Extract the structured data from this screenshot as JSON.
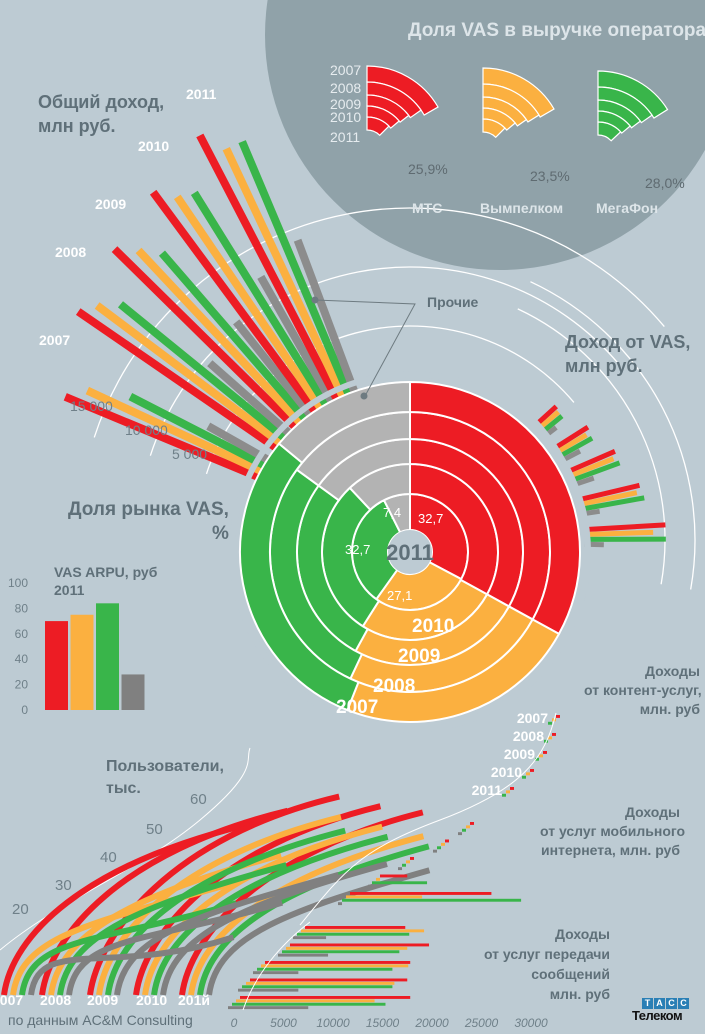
{
  "colors": {
    "mts": "#ed1c24",
    "beeline": "#fbb040",
    "megafon": "#39b54a",
    "others": "#8c8c8c",
    "others_light": "#b3b3b3",
    "background": "#bdcbd3",
    "circle": "#90a2a9"
  },
  "operators": [
    "МТС",
    "Вымпелком",
    "МегаФон",
    "Прочие"
  ],
  "years": [
    "2007",
    "2008",
    "2009",
    "2010",
    "2011"
  ],
  "source": "по  данным AC&M Consulting",
  "logo": {
    "top": [
      "Т",
      "А",
      "С",
      "С"
    ],
    "bottom": "Телеком"
  },
  "chart_data": [
    {
      "id": "vas_share_of_revenue",
      "type": "pie",
      "title": "Доля VAS в выручке оператора",
      "years": [
        "2007",
        "2008",
        "2009",
        "2010",
        "2011"
      ],
      "series": [
        {
          "name": "МТС",
          "label_2011": "25,9%",
          "value_2011": 25.9
        },
        {
          "name": "Вымпелком",
          "label_2011": "23,5%",
          "value_2011": 23.5
        },
        {
          "name": "МегаФон",
          "label_2011": "28,0%",
          "value_2011": 28.0
        }
      ]
    },
    {
      "id": "total_revenue",
      "type": "bar",
      "title": "Общий доход, млн руб.",
      "categories": [
        "2007",
        "2008",
        "2009",
        "2010",
        "2011"
      ],
      "axis_ticks": [
        "5 000",
        "10 000",
        "15 000"
      ],
      "series": [
        {
          "name": "МТС",
          "values": [
            18500,
            21000,
            22000,
            23500,
            25500
          ]
        },
        {
          "name": "Вымпелком",
          "values": [
            17000,
            20000,
            20500,
            22000,
            23500
          ]
        },
        {
          "name": "МегаФон",
          "values": [
            13500,
            18500,
            19000,
            21500,
            23500
          ]
        },
        {
          "name": "Прочие",
          "values": [
            6500,
            9500,
            10500,
            12500,
            14000
          ]
        }
      ]
    },
    {
      "id": "vas_market_share",
      "type": "pie",
      "title": "Доля рынка VAS, %",
      "center_label": "2011",
      "ring_labels": [
        "2011",
        "2010",
        "2009",
        "2008",
        "2007"
      ],
      "annotation": "Прочие",
      "rings": [
        {
          "year": "2011",
          "values": [
            32.7,
            27.1,
            32.7,
            7.4
          ],
          "labels": [
            "32,7",
            "27,1",
            "32,7",
            "7,4"
          ]
        },
        {
          "year": "2010",
          "values": [
            33,
            26,
            29,
            12
          ]
        },
        {
          "year": "2009",
          "values": [
            33,
            25,
            27,
            15
          ]
        },
        {
          "year": "2008",
          "values": [
            33,
            24,
            28,
            15
          ]
        },
        {
          "year": "2007",
          "values": [
            33,
            23,
            30,
            14
          ]
        }
      ]
    },
    {
      "id": "vas_revenue",
      "type": "bar",
      "title": "Доход от VAS, млн руб.",
      "categories": [
        "2007",
        "2008",
        "2009",
        "2010",
        "2011"
      ],
      "series": [
        {
          "name": "МТС",
          "values": [
            2200,
            3400,
            4600,
            5800,
            7700
          ]
        },
        {
          "name": "Вымпелком",
          "values": [
            2000,
            2900,
            4200,
            5400,
            6500
          ]
        },
        {
          "name": "МегаФон",
          "values": [
            2000,
            3200,
            4600,
            6000,
            7700
          ]
        },
        {
          "name": "Прочие",
          "values": [
            900,
            1600,
            1800,
            1600,
            1800
          ]
        }
      ]
    },
    {
      "id": "vas_arpu",
      "type": "bar",
      "title": "VAS ARPU, руб",
      "subtitle": "2011",
      "categories": [
        "МТС",
        "Вымпелком",
        "МегаФон",
        "Прочие"
      ],
      "values": [
        70,
        75,
        84,
        28
      ],
      "yticks": [
        "0",
        "20",
        "40",
        "60",
        "80",
        "100"
      ],
      "ylim": [
        0,
        100
      ]
    },
    {
      "id": "users",
      "type": "line",
      "title": "Пользователи, тыс.",
      "categories": [
        "2007",
        "2008",
        "2009",
        "2010",
        "201й"
      ],
      "yticks": [
        "20",
        "30",
        "40",
        "50",
        "60"
      ],
      "series": [
        {
          "name": "МТС",
          "values": [
            60,
            63,
            66,
            62,
            59
          ]
        },
        {
          "name": "Вымпелком",
          "values": [
            43,
            50,
            60,
            56,
            52
          ]
        },
        {
          "name": "МегаФон",
          "values": [
            37,
            47,
            56,
            53,
            49
          ]
        },
        {
          "name": "Прочие",
          "values": [
            27,
            36,
            43,
            45,
            42
          ]
        }
      ]
    },
    {
      "id": "content_revenue",
      "type": "bar",
      "title": "Доходы от контент-услуг, млн. руб",
      "categories": [
        "2007",
        "2008",
        "2009",
        "2010",
        "2011"
      ],
      "series": [
        {
          "name": "МТС",
          "values": [
            6700,
            9000,
            13500,
            13500,
            16500
          ]
        },
        {
          "name": "Вымпелком",
          "values": [
            3500,
            5600,
            7600,
            11500,
            14000
          ]
        },
        {
          "name": "МегаФон",
          "values": [
            2800,
            6000,
            9800,
            12500,
            15200
          ]
        }
      ]
    },
    {
      "id": "mobile_internet_revenue",
      "type": "bar",
      "title": "Доходы от услуг мобильного интернета, млн. руб",
      "categories": [
        "2007",
        "2008",
        "2009",
        "2010",
        "2011"
      ],
      "series": [
        {
          "name": "МТС",
          "values": [
            5200,
            7400,
            11000,
            17500,
            26000
          ]
        },
        {
          "name": "Вымпелком",
          "values": [
            5000,
            6800,
            11000,
            14500,
            19000
          ]
        },
        {
          "name": "МегаФон",
          "values": [
            4600,
            7500,
            11000,
            19500,
            29000
          ]
        },
        {
          "name": "Прочие",
          "values": [
            500,
            2500,
            3000,
            3000,
            3700
          ]
        }
      ]
    },
    {
      "id": "messaging_revenue",
      "type": "bar",
      "title": "Доходы от услуг передачи сообщений млн. руб",
      "categories": [
        "2007",
        "2008",
        "2009",
        "2010",
        "2011"
      ],
      "xticks": [
        "0",
        "5000",
        "10000",
        "15000",
        "20000",
        "25000",
        "30000"
      ],
      "xlim": [
        0,
        32000
      ],
      "series": [
        {
          "name": "МТС",
          "values": [
            17300,
            19700,
            17800,
            17500,
            17800
          ]
        },
        {
          "name": "Вымпелком",
          "values": [
            19200,
            17500,
            17600,
            16200,
            14200
          ]
        },
        {
          "name": "МегаФон",
          "values": [
            17700,
            16700,
            16000,
            16000,
            15300
          ]
        },
        {
          "name": "Прочие",
          "values": [
            9300,
            9500,
            6500,
            6500,
            7500
          ]
        }
      ]
    }
  ],
  "labels": {
    "share_title": "Доля VAS в выручке оператора",
    "total_title_1": "Общий доход,",
    "total_title_2": "млн руб.",
    "vas_rev_title_1": "Доход от VAS,",
    "vas_rev_title_2": "млн руб.",
    "market_title_1": "Доля рынка VAS,",
    "market_title_2": "%",
    "arpu_title": "VAS ARPU, руб",
    "arpu_year": "2011",
    "users_title_1": "Пользователи,",
    "users_title_2": "тыс.",
    "content_title_1": "Доходы",
    "content_title_2": "от контент-услуг,",
    "content_title_3": "млн. руб",
    "internet_title_1": "Доходы",
    "internet_title_2": "от услуг мобильного",
    "internet_title_3": "интернета, млн. руб",
    "msg_title_1": "Доходы",
    "msg_title_2": "от услуг передачи",
    "msg_title_3": "сообщений",
    "msg_title_4": "млн. руб",
    "others": "Прочие",
    "center_year": "2011"
  }
}
